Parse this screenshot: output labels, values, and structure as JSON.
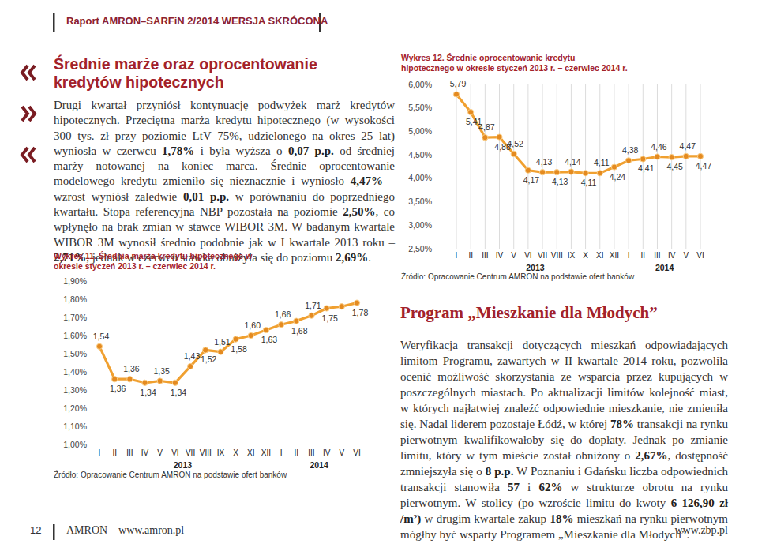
{
  "header": {
    "title": "Raport AMRON–SARFiN 2/2014 WERSJA SKRÓCONA"
  },
  "section1": {
    "heading": "Średnie marże oraz oprocentowanie kredytów hipotecznych",
    "paragraph": [
      {
        "text": "Drugi kwartał przyniósł kontynuację podwyżek marż kredytów hipotecznych. Przeciętna marża kredytu hipotecznego (w wysokości 300 tys. zł przy poziomie LtV 75%, udzielonego na okres 25 lat) wyniosła w czerwcu ",
        "bold": false
      },
      {
        "text": "1,78%",
        "bold": true
      },
      {
        "text": " i była wyższa o ",
        "bold": false
      },
      {
        "text": "0,07 p.p.",
        "bold": true
      },
      {
        "text": " od średniej marży notowanej na koniec marca. Średnie oprocentowanie modelowego kredytu zmieniło się nieznacznie i wyniosło ",
        "bold": false
      },
      {
        "text": "4,47%",
        "bold": true
      },
      {
        "text": " – wzrost wyniósł zaledwie ",
        "bold": false
      },
      {
        "text": "0,01 p.p.",
        "bold": true
      },
      {
        "text": " w porównaniu do poprzedniego kwartału. Stopa referencyjna NBP pozostała na poziomie ",
        "bold": false
      },
      {
        "text": "2,50%",
        "bold": true
      },
      {
        "text": ", co wpłynęło na brak zmian w stawce WIBOR 3M. W badanym kwartale WIBOR 3M wynosił średnio podobnie jak w I kwartale 2013 roku – ",
        "bold": false
      },
      {
        "text": "2,71%",
        "bold": true
      },
      {
        "text": ", jednak w czerwcu stawka obniżyła się do poziomu ",
        "bold": false
      },
      {
        "text": "2,69%",
        "bold": true
      },
      {
        "text": ".",
        "bold": false
      }
    ]
  },
  "chart_data": [
    {
      "type": "line",
      "title": "Wykres 11. Średnia marża kredytu hipotecznego w okresie styczeń 2013 r. – czerwiec 2014 r.",
      "categories": [
        "I",
        "II",
        "III",
        "IV",
        "V",
        "VI",
        "VII",
        "VIII",
        "IX",
        "X",
        "XI",
        "XII",
        "I",
        "II",
        "III",
        "IV",
        "V",
        "VI"
      ],
      "values": [
        1.54,
        1.36,
        1.36,
        1.34,
        1.35,
        1.34,
        1.43,
        1.52,
        1.51,
        1.58,
        1.6,
        1.63,
        1.66,
        1.68,
        1.71,
        1.75,
        1.76,
        1.78
      ],
      "value_labels": [
        "1,54",
        "1,36",
        "1,36",
        "1,34",
        "1,35",
        "1,34",
        "1,43",
        "1,52",
        "1,51",
        "1,58",
        "1,60",
        "1,63",
        "1,66",
        "1,68",
        "1,71",
        "1,75",
        null,
        "1,78"
      ],
      "data_labels": true,
      "color": "#f0a030",
      "marker": "circle",
      "ylim": [
        1.0,
        1.9
      ],
      "yticks": [
        {
          "value": 1.0,
          "label": "1,00%"
        },
        {
          "value": 1.1,
          "label": "1,10%"
        },
        {
          "value": 1.2,
          "label": "1,20%"
        },
        {
          "value": 1.3,
          "label": "1,30%"
        },
        {
          "value": 1.4,
          "label": "1,40%"
        },
        {
          "value": 1.5,
          "label": "1,50%"
        },
        {
          "value": 1.6,
          "label": "1,60%"
        },
        {
          "value": 1.7,
          "label": "1,70%"
        },
        {
          "value": 1.8,
          "label": "1,80%"
        },
        {
          "value": 1.9,
          "label": "1,90%"
        }
      ],
      "grid": false,
      "annotations": [
        "2013",
        "2014"
      ],
      "source": "Źródło: Opracowanie Centrum AMRON na podstawie ofert banków"
    },
    {
      "type": "line",
      "title": "Wykres 12. Średnie oprocentowanie kredytu hipotecznego w okresie styczeń 2013 r. – czerwiec 2014 r.",
      "categories": [
        "I",
        "II",
        "III",
        "IV",
        "V",
        "VI",
        "VII",
        "VIII",
        "IX",
        "X",
        "XI",
        "XII",
        "I",
        "II",
        "III",
        "IV",
        "V",
        "VI"
      ],
      "values": [
        5.79,
        5.41,
        4.87,
        4.88,
        4.52,
        4.17,
        4.13,
        4.13,
        4.14,
        4.11,
        4.11,
        4.24,
        4.38,
        4.41,
        4.46,
        4.45,
        4.47,
        4.47
      ],
      "value_labels": [
        "5,79",
        "5,41",
        "4,87",
        "4,88",
        "4,52",
        "4,17",
        "4,13",
        "4,13",
        "4,14",
        "4,11",
        "4,11",
        "4,24",
        "4,38",
        "4,41",
        "4,46",
        "4,45",
        "4,47",
        "4,47"
      ],
      "data_labels": true,
      "color": "#f0a030",
      "marker": "circle",
      "ylim": [
        2.5,
        6.0
      ],
      "yticks": [
        {
          "value": 2.5,
          "label": "2,50%"
        },
        {
          "value": 3.0,
          "label": "3,00%"
        },
        {
          "value": 3.5,
          "label": "3,50%"
        },
        {
          "value": 4.0,
          "label": "4,00%"
        },
        {
          "value": 4.5,
          "label": "4,50%"
        },
        {
          "value": 5.0,
          "label": "5,00%"
        },
        {
          "value": 5.5,
          "label": "5,50%"
        },
        {
          "value": 6.0,
          "label": "6,00%"
        }
      ],
      "grid": true,
      "annotations": [
        "2013",
        "2014"
      ],
      "source": "Źródło: Opracowanie Centrum AMRON na podstawie ofert banków"
    }
  ],
  "section2": {
    "heading": "Program „Mieszkanie dla Młodych”",
    "paragraph": [
      {
        "text": "Weryfikacja transakcji dotyczących mieszkań odpowiadających limitom Programu, zawartych w II kwartale 2014 roku, pozwoliła ocenić możliwość skorzystania ze wsparcia przez kupujących w poszczególnych miastach. Po aktualizacji limitów kolejność miast, w których najłatwiej znaleźć odpowiednie mieszkanie, nie zmieniła się. Nadal liderem pozostaje Łódź, w której ",
        "bold": false
      },
      {
        "text": "78%",
        "bold": true
      },
      {
        "text": " transakcji na rynku pierwotnym kwalifikowałoby się do dopłaty. Jednak po zmianie limitu, który w tym mieście został obniżony o ",
        "bold": false
      },
      {
        "text": "2,67%",
        "bold": true
      },
      {
        "text": ", dostępność zmniejszyła się o ",
        "bold": false
      },
      {
        "text": "8 p.p.",
        "bold": true
      },
      {
        "text": " W Poznaniu i Gdańsku liczba odpowiednich transakcji stanowiła ",
        "bold": false
      },
      {
        "text": "57",
        "bold": true
      },
      {
        "text": " i ",
        "bold": false
      },
      {
        "text": "62%",
        "bold": true
      },
      {
        "text": " w strukturze obrotu na rynku pierwotnym. W stolicy (po wzroście limitu do kwoty ",
        "bold": false
      },
      {
        "text": "6 126,90 zł /m²)",
        "bold": true
      },
      {
        "text": " w drugim kwartale zakup ",
        "bold": false
      },
      {
        "text": "18%",
        "bold": true
      },
      {
        "text": " mieszkań na rynku pierwotnym mógłby być wsparty Programem „Mieszkanie dla Młodych”.",
        "bold": false
      }
    ]
  },
  "footer": {
    "page": "12",
    "left": "AMRON – www.amron.pl",
    "right": "www.zbp.pl"
  }
}
